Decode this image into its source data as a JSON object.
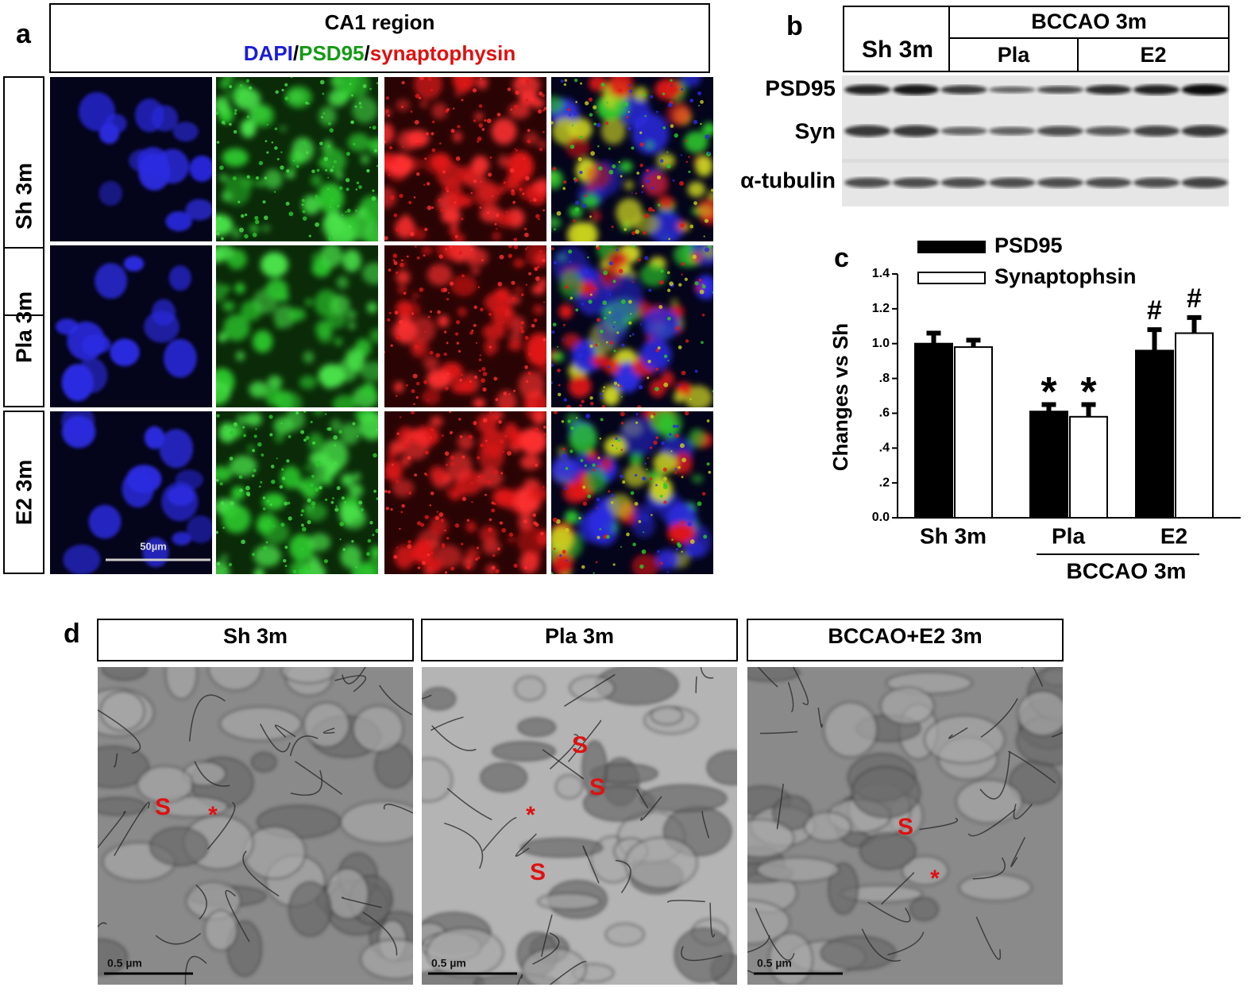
{
  "panel_a": {
    "label": "a",
    "title": "CA1 region",
    "stains": [
      {
        "text": "DAPI",
        "color": "#1c1cd8"
      },
      {
        "text": "PSD95",
        "color": "#159a15"
      },
      {
        "text": "synaptophysin",
        "color": "#e01010"
      }
    ],
    "separator": "/",
    "rows": [
      "Sh 3m",
      "Pla 3m",
      "E2 3m"
    ],
    "scale_bar": "50µm"
  },
  "panel_b": {
    "label": "b",
    "sham": "Sh 3m",
    "group": "BCCAO 3m",
    "subgroups": [
      "Pla",
      "E2"
    ],
    "bands": [
      "PSD95",
      "Syn",
      "α-tubulin"
    ]
  },
  "chart_data": {
    "type": "bar",
    "label": "c",
    "y_label": "Changes vs Sh",
    "categories": [
      "Sh 3m",
      "Pla",
      "E2"
    ],
    "group_label": "BCCAO 3m",
    "series": [
      {
        "name": "PSD95",
        "color": "#000000",
        "values": [
          1.0,
          0.61,
          0.96
        ],
        "errors": [
          0.06,
          0.04,
          0.12
        ],
        "markers": [
          null,
          "*",
          "#"
        ]
      },
      {
        "name": "Synaptophsin",
        "color": "#ffffff",
        "values": [
          0.98,
          0.58,
          1.06
        ],
        "errors": [
          0.04,
          0.07,
          0.09
        ],
        "markers": [
          null,
          "*",
          "#"
        ]
      }
    ],
    "ylim": [
      0,
      1.4
    ],
    "yticks": [
      {
        "value": 0,
        "label": "0.0"
      },
      {
        "value": 0.2,
        "label": ".2"
      },
      {
        "value": 0.4,
        "label": ".4"
      },
      {
        "value": 0.6,
        "label": ".6"
      },
      {
        "value": 0.8,
        "label": ".8"
      },
      {
        "value": 1.0,
        "label": "1.0"
      },
      1.2,
      1.4
    ]
  },
  "panel_d": {
    "label": "d",
    "panels": [
      {
        "title": "Sh 3m",
        "markers": [
          "S",
          "*"
        ]
      },
      {
        "title": "Pla 3m",
        "markers": [
          "S",
          "S",
          "*",
          "S"
        ]
      },
      {
        "title": "BCCAO+E2 3m",
        "markers": [
          "S",
          "*"
        ]
      }
    ],
    "scale_bar": "0.5 µm"
  }
}
